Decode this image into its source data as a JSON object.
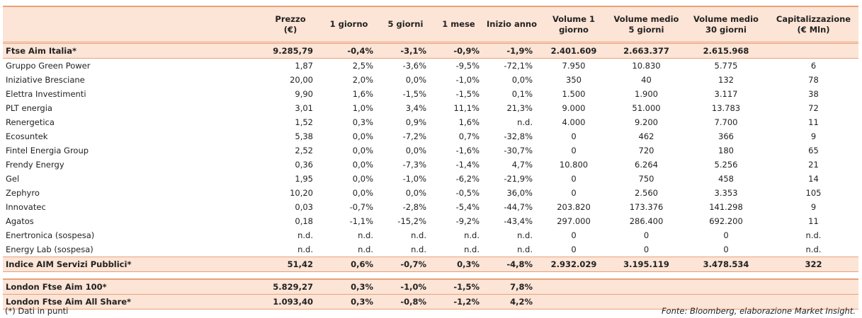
{
  "table": {
    "columns": [
      "Prezzo\n(€)",
      "1 giorno",
      "5 giorni",
      "1 mese",
      "Inizio anno",
      "Volume 1\ngiorno",
      "Volume medio\n5 giorni",
      "Volume medio\n30 giorni",
      "Capitalizzazione\n(€ Mln)"
    ],
    "index_row": {
      "name": "Ftse Aim Italia*",
      "cells": [
        "9.285,79",
        "-0,4%",
        "-3,1%",
        "-0,9%",
        "-1,9%",
        "2.401.609",
        "2.663.377",
        "2.615.968"
      ]
    },
    "rows": [
      {
        "name": "Gruppo Green Power",
        "cells": [
          "1,87",
          "2,5%",
          "-3,6%",
          "-9,5%",
          "-72,1%",
          "7.950",
          "10.830",
          "5.775",
          "6"
        ]
      },
      {
        "name": "Iniziative Bresciane",
        "cells": [
          "20,00",
          "2,0%",
          "0,0%",
          "-1,0%",
          "0,0%",
          "350",
          "40",
          "132",
          "78"
        ]
      },
      {
        "name": "Elettra Investimenti",
        "cells": [
          "9,90",
          "1,6%",
          "-1,5%",
          "-1,5%",
          "0,1%",
          "1.500",
          "1.900",
          "3.117",
          "38"
        ]
      },
      {
        "name": "PLT energia",
        "cells": [
          "3,01",
          "1,0%",
          "3,4%",
          "11,1%",
          "21,3%",
          "9.000",
          "51.000",
          "13.783",
          "72"
        ]
      },
      {
        "name": "Renergetica",
        "cells": [
          "1,52",
          "0,3%",
          "0,9%",
          "1,6%",
          "n.d.",
          "4.000",
          "9.200",
          "7.700",
          "11"
        ]
      },
      {
        "name": "Ecosuntek",
        "cells": [
          "5,38",
          "0,0%",
          "-7,2%",
          "0,7%",
          "-32,8%",
          "0",
          "462",
          "366",
          "9"
        ]
      },
      {
        "name": "Fintel Energia Group",
        "cells": [
          "2,52",
          "0,0%",
          "0,0%",
          "-1,6%",
          "-30,7%",
          "0",
          "720",
          "180",
          "65"
        ]
      },
      {
        "name": "Frendy Energy",
        "cells": [
          "0,36",
          "0,0%",
          "-7,3%",
          "-1,4%",
          "4,7%",
          "10.800",
          "6.264",
          "5.256",
          "21"
        ]
      },
      {
        "name": "Gel",
        "cells": [
          "1,95",
          "0,0%",
          "-1,0%",
          "-6,2%",
          "-21,9%",
          "0",
          "750",
          "458",
          "14"
        ]
      },
      {
        "name": "Zephyro",
        "cells": [
          "10,20",
          "0,0%",
          "0,0%",
          "-0,5%",
          "36,0%",
          "0",
          "2.560",
          "3.353",
          "105"
        ]
      },
      {
        "name": "Innovatec",
        "cells": [
          "0,03",
          "-0,7%",
          "-2,8%",
          "-5,4%",
          "-44,7%",
          "203.820",
          "173.376",
          "141.298",
          "9"
        ]
      },
      {
        "name": "Agatos",
        "cells": [
          "0,18",
          "-1,1%",
          "-15,2%",
          "-9,2%",
          "-43,4%",
          "297.000",
          "286.400",
          "692.200",
          "11"
        ]
      },
      {
        "name": "Enertronica (sospesa)",
        "cells": [
          "n.d.",
          "n.d.",
          "n.d.",
          "n.d.",
          "n.d.",
          "0",
          "0",
          "0",
          "n.d."
        ]
      },
      {
        "name": "Energy Lab (sospesa)",
        "cells": [
          "n.d.",
          "n.d.",
          "n.d.",
          "n.d.",
          "n.d.",
          "0",
          "0",
          "0",
          "n.d."
        ]
      }
    ],
    "summary_row": {
      "name": "Indice AIM Servizi Pubblici*",
      "cells": [
        "51,42",
        "0,6%",
        "-0,7%",
        "0,3%",
        "-4,8%",
        "2.932.029",
        "3.195.119",
        "3.478.534",
        "322"
      ]
    },
    "london_rows": [
      {
        "name": "London Ftse Aim 100*",
        "cells": [
          "5.829,27",
          "0,3%",
          "-1,0%",
          "-1,5%",
          "7,8%"
        ]
      },
      {
        "name": "London Ftse Aim All Share*",
        "cells": [
          "1.093,40",
          "0,3%",
          "-0,8%",
          "-1,2%",
          "4,2%"
        ]
      }
    ]
  },
  "footer": {
    "note": "(*) Dati in punti",
    "source": "Fonte: Bloomberg, elaborazione Market Insight."
  }
}
